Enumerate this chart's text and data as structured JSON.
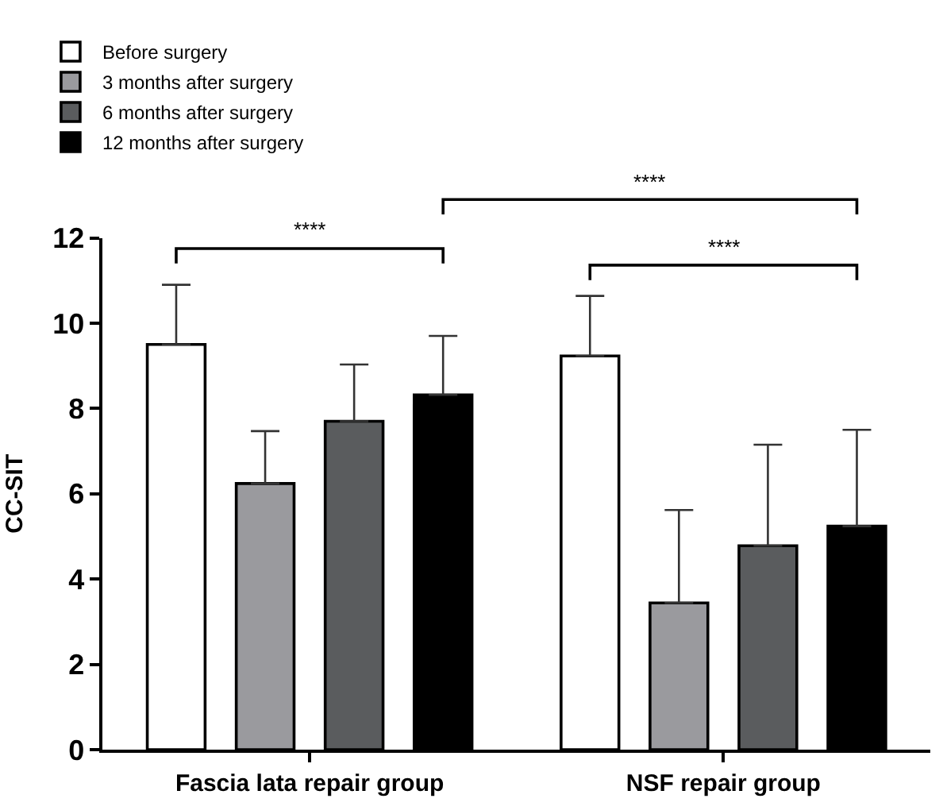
{
  "chart_data": {
    "type": "bar",
    "ylabel": "CC-SIT",
    "categories": [
      "Fascia lata repair group",
      "NSF repair group"
    ],
    "series": [
      {
        "name": "Before surgery",
        "color": "#ffffff",
        "values": [
          9.5,
          9.23
        ],
        "errors": [
          [
            9.5,
            10.9
          ],
          [
            9.23,
            10.64
          ]
        ]
      },
      {
        "name": "3 months after surgery",
        "color": "#9a9a9e",
        "values": [
          6.24,
          3.44
        ],
        "errors": [
          [
            6.24,
            7.47
          ],
          [
            3.44,
            5.62
          ]
        ]
      },
      {
        "name": "6 months after surgery",
        "color": "#5a5c5e",
        "values": [
          7.7,
          4.78
        ],
        "errors": [
          [
            7.7,
            9.03
          ],
          [
            4.78,
            7.15
          ]
        ]
      },
      {
        "name": "12 months after surgery",
        "color": "#000000",
        "values": [
          8.32,
          5.24
        ],
        "errors": [
          [
            8.32,
            9.7
          ],
          [
            5.24,
            7.5
          ]
        ]
      }
    ],
    "ylim": [
      0,
      12
    ],
    "yticks": [
      0,
      2,
      4,
      6,
      8,
      10,
      12
    ],
    "annotations": [
      "****",
      "****",
      "****"
    ],
    "legend": "top left"
  }
}
